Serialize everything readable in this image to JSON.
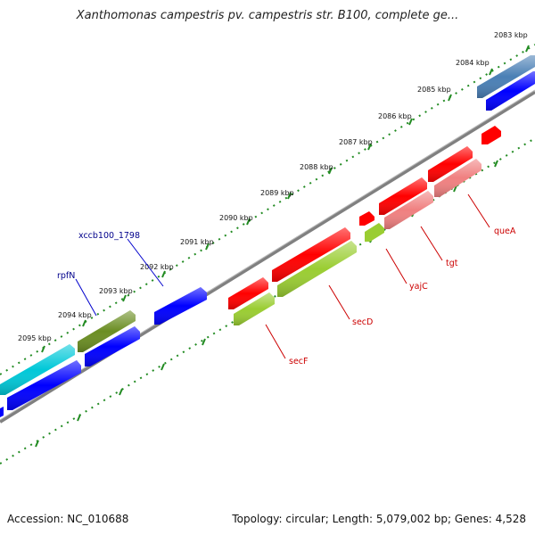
{
  "title": "Xanthomonas campestris pv. campestris str. B100, complete ge...",
  "footer": {
    "accession": "Accession: NC_010688",
    "summary": "Topology: circular; Length: 5,079,002 bp; Genes: 4,528"
  },
  "ruler": {
    "unit": "kbp",
    "ticks": [
      {
        "kbp": 2083,
        "label": "2083 kbp"
      },
      {
        "kbp": 2084,
        "label": "2084 kbp"
      },
      {
        "kbp": 2085,
        "label": "2085 kbp"
      },
      {
        "kbp": 2086,
        "label": "2086 kbp"
      },
      {
        "kbp": 2087,
        "label": "2087 kbp"
      },
      {
        "kbp": 2088,
        "label": "2088 kbp"
      },
      {
        "kbp": 2089,
        "label": "2089 kbp"
      },
      {
        "kbp": 2090,
        "label": "2090 kbp"
      },
      {
        "kbp": 2091,
        "label": "2091 kbp"
      },
      {
        "kbp": 2092,
        "label": "2092 kbp"
      },
      {
        "kbp": 2093,
        "label": "2093 kbp"
      },
      {
        "kbp": 2094,
        "label": "2094 kbp"
      },
      {
        "kbp": 2095,
        "label": "2095 kbp"
      }
    ]
  },
  "colors": {
    "cds_forward": "#0000ff",
    "cds_reverse": "#ff0000",
    "cds_light_red": "#f08080",
    "outer_teal": "#00c8d8",
    "outer_olive": "#6b8e23",
    "outer_steel": "#4a7fb5",
    "outer_lime": "#9acd32",
    "backbone": "#808080",
    "tick_green": "#228b22",
    "label_blue": "#00008b",
    "label_red": "#cc0000"
  },
  "gene_labels": [
    {
      "name": "xccb100_1798",
      "color": "blue"
    },
    {
      "name": "rpfN",
      "color": "blue"
    },
    {
      "name": "queA",
      "color": "red"
    },
    {
      "name": "tgt",
      "color": "red"
    },
    {
      "name": "yajC",
      "color": "red"
    },
    {
      "name": "secD",
      "color": "red"
    },
    {
      "name": "secF",
      "color": "red"
    }
  ]
}
